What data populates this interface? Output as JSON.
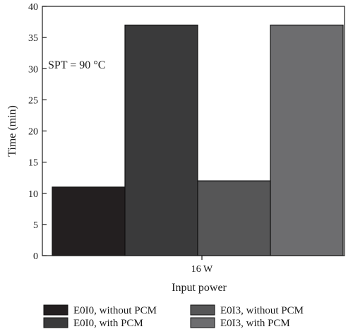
{
  "chart_data": {
    "type": "bar",
    "categories": [
      "16 W"
    ],
    "series": [
      {
        "name": "E0I0, without PCM",
        "values": [
          11
        ],
        "color": "#231f20"
      },
      {
        "name": "E0I0, with PCM",
        "values": [
          37
        ],
        "color": "#3a3a3b"
      },
      {
        "name": "E0I3, without PCM",
        "values": [
          12
        ],
        "color": "#565657"
      },
      {
        "name": "E0I3, with PCM",
        "values": [
          37
        ],
        "color": "#6d6d6f"
      }
    ],
    "title": "",
    "xlabel": "Input power",
    "ylabel": "Time (min)",
    "ylim": [
      0,
      40
    ],
    "yticks": [
      "0",
      "5",
      "10",
      "15",
      "20",
      "25",
      "30",
      "35",
      "40"
    ],
    "annotation": "SPT = 90 °C",
    "grid": false,
    "legend_position": "bottom"
  }
}
